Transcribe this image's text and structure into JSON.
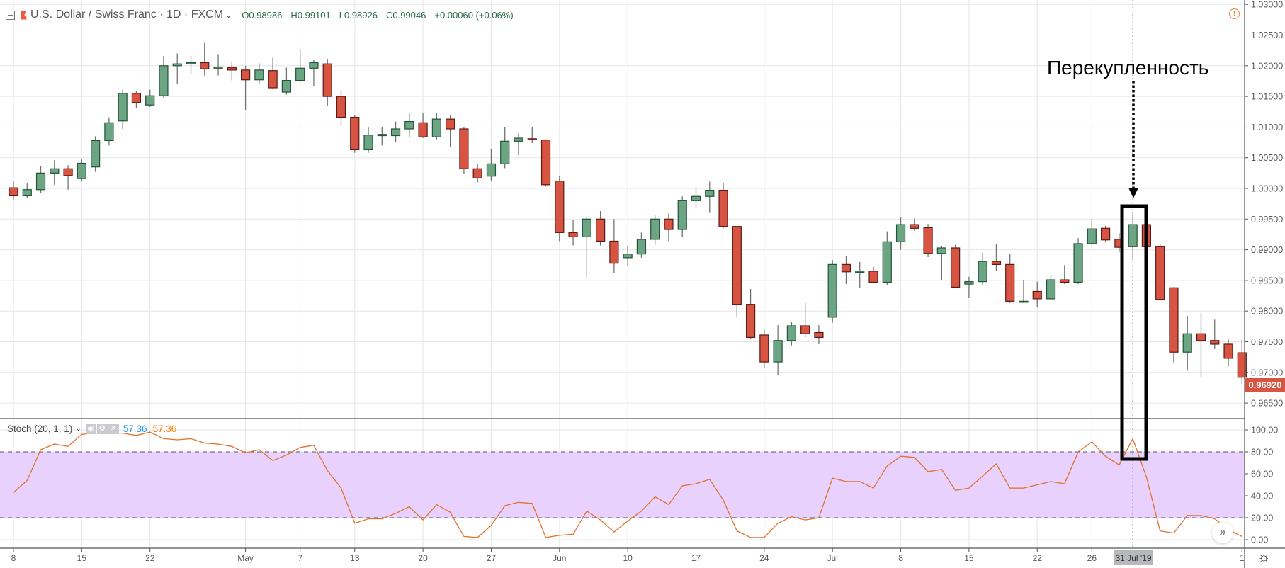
{
  "header": {
    "symbol": "U.S. Dollar / Swiss Franc · 1D · FXCM",
    "open": "O0.98986",
    "high": "H0.99101",
    "low": "L0.98926",
    "close": "C0.99046",
    "change": "+0.00060 (+0.06%)"
  },
  "indicator": {
    "label": "Stoch (20, 1, 1)",
    "k_value": "57.36",
    "d_value": "57.36",
    "k_color": "#2196f3",
    "d_color": "#f57c00"
  },
  "annotation": {
    "text": "Перекупленность"
  },
  "last_price_label": "0.96920",
  "crosshair_date_label": "31 Jul '19",
  "colors": {
    "up": "#6ba583",
    "up_border": "#225437",
    "down": "#d75442",
    "down_border": "#5b1a13",
    "stoch_line": "#e0712c",
    "stoch_band": "#e8d1fd"
  },
  "chart_data": [
    {
      "type": "candlestick",
      "title": "",
      "price_ticks": [
        "1.03000",
        "1.02500",
        "1.02000",
        "1.01500",
        "1.01000",
        "1.00500",
        "1.00000",
        "0.99500",
        "0.99000",
        "0.98500",
        "0.98000",
        "0.97500",
        "0.97000",
        "0.96500"
      ],
      "ylim": [
        0.9635,
        1.0307
      ],
      "candles_ohlc": [
        [
          1.0001,
          1.0012,
          0.9982,
          0.9988
        ],
        [
          0.9988,
          1.0008,
          0.9984,
          0.9998
        ],
        [
          0.9998,
          1.0036,
          0.9993,
          1.0025
        ],
        [
          1.0025,
          1.0046,
          1.0006,
          1.0032
        ],
        [
          1.0032,
          1.0038,
          0.9998,
          1.0021
        ],
        [
          1.0016,
          1.0047,
          1.0011,
          1.0041
        ],
        [
          1.0035,
          1.0085,
          1.0027,
          1.0078
        ],
        [
          1.0078,
          1.0116,
          1.007,
          1.0107
        ],
        [
          1.011,
          1.0161,
          1.0097,
          1.0155
        ],
        [
          1.0155,
          1.0159,
          1.0131,
          1.014
        ],
        [
          1.0136,
          1.0161,
          1.0133,
          1.0151
        ],
        [
          1.0151,
          1.0216,
          1.0147,
          1.02
        ],
        [
          1.02,
          1.022,
          1.017,
          1.0203
        ],
        [
          1.0203,
          1.0216,
          1.0187,
          1.0205
        ],
        [
          1.0205,
          1.0237,
          1.0184,
          1.0195
        ],
        [
          1.0196,
          1.0219,
          1.0184,
          1.0198
        ],
        [
          1.0197,
          1.0207,
          1.0176,
          1.0193
        ],
        [
          1.0193,
          1.02,
          1.0128,
          1.0177
        ],
        [
          1.0177,
          1.0204,
          1.017,
          1.0193
        ],
        [
          1.0192,
          1.0213,
          1.0162,
          1.0164
        ],
        [
          1.0157,
          1.0197,
          1.0153,
          1.0176
        ],
        [
          1.0176,
          1.0227,
          1.0173,
          1.0196
        ],
        [
          1.0196,
          1.0209,
          1.0167,
          1.0205
        ],
        [
          1.0203,
          1.0211,
          1.0134,
          1.015
        ],
        [
          1.015,
          1.016,
          1.0103,
          1.0116
        ],
        [
          1.0116,
          1.012,
          1.0058,
          1.0063
        ],
        [
          1.0063,
          1.01,
          1.0058,
          1.0087
        ],
        [
          1.0086,
          1.01,
          1.007,
          1.0088
        ],
        [
          1.0086,
          1.0109,
          1.0075,
          1.0097
        ],
        [
          1.0097,
          1.0123,
          1.0084,
          1.0109
        ],
        [
          1.0107,
          1.0123,
          1.0082,
          1.0084
        ],
        [
          1.0084,
          1.0123,
          1.008,
          1.0113
        ],
        [
          1.0113,
          1.012,
          1.0067,
          1.0097
        ],
        [
          1.0097,
          1.01,
          1.0024,
          1.0032
        ],
        [
          1.0032,
          1.004,
          1.001,
          1.0017
        ],
        [
          1.002,
          1.0064,
          1.0012,
          1.004
        ],
        [
          1.004,
          1.01,
          1.0033,
          1.0077
        ],
        [
          1.0077,
          1.009,
          1.0054,
          1.0082
        ],
        [
          1.0081,
          1.01,
          1.0074,
          1.008
        ],
        [
          1.0079,
          1.008,
          1.0003,
          1.0006
        ],
        [
          1.0012,
          1.002,
          0.9914,
          0.9928
        ],
        [
          0.9928,
          0.9948,
          0.9907,
          0.9921
        ],
        [
          0.9921,
          0.9954,
          0.9855,
          0.995
        ],
        [
          0.995,
          0.9963,
          0.9907,
          0.9914
        ],
        [
          0.9914,
          0.995,
          0.9862,
          0.9878
        ],
        [
          0.9887,
          0.9907,
          0.9874,
          0.9893
        ],
        [
          0.9893,
          0.9928,
          0.9887,
          0.9917
        ],
        [
          0.9917,
          0.9957,
          0.9908,
          0.995
        ],
        [
          0.995,
          0.9959,
          0.9914,
          0.9933
        ],
        [
          0.9933,
          0.9987,
          0.9921,
          0.998
        ],
        [
          0.998,
          1.0002,
          0.9968,
          0.9987
        ],
        [
          0.9987,
          1.0011,
          0.996,
          0.9997
        ],
        [
          0.9997,
          1.0009,
          0.9935,
          0.9938
        ],
        [
          0.9938,
          0.9938,
          0.979,
          0.9811
        ],
        [
          0.9811,
          0.9836,
          0.9754,
          0.9757
        ],
        [
          0.9761,
          0.977,
          0.9708,
          0.9717
        ],
        [
          0.9717,
          0.9777,
          0.9695,
          0.9752
        ],
        [
          0.9752,
          0.9782,
          0.9744,
          0.9776
        ],
        [
          0.9776,
          0.9813,
          0.9757,
          0.9763
        ],
        [
          0.9765,
          0.9777,
          0.9746,
          0.9757
        ],
        [
          0.979,
          0.9883,
          0.9781,
          0.9876
        ],
        [
          0.9876,
          0.989,
          0.9844,
          0.9864
        ],
        [
          0.9863,
          0.988,
          0.9838,
          0.9865
        ],
        [
          0.9865,
          0.9872,
          0.9847,
          0.9847
        ],
        [
          0.9847,
          0.993,
          0.9843,
          0.9913
        ],
        [
          0.9913,
          0.9953,
          0.99,
          0.9941
        ],
        [
          0.9941,
          0.9951,
          0.9931,
          0.9935
        ],
        [
          0.9936,
          0.9942,
          0.9888,
          0.9894
        ],
        [
          0.9894,
          0.9906,
          0.985,
          0.9903
        ],
        [
          0.9903,
          0.9908,
          0.9838,
          0.9839
        ],
        [
          0.9844,
          0.9856,
          0.9821,
          0.9848
        ],
        [
          0.9848,
          0.9895,
          0.9842,
          0.9881
        ],
        [
          0.9881,
          0.991,
          0.9865,
          0.9876
        ],
        [
          0.9876,
          0.9893,
          0.9813,
          0.9816
        ],
        [
          0.9815,
          0.9851,
          0.9813,
          0.9816
        ],
        [
          0.9832,
          0.9848,
          0.9807,
          0.982
        ],
        [
          0.982,
          0.9859,
          0.9818,
          0.9851
        ],
        [
          0.9851,
          0.9875,
          0.9844,
          0.9847
        ],
        [
          0.9847,
          0.9919,
          0.9844,
          0.991
        ],
        [
          0.991,
          0.995,
          0.9907,
          0.9934
        ],
        [
          0.9935,
          0.9939,
          0.9912,
          0.9916
        ],
        [
          0.9917,
          0.9927,
          0.9896,
          0.9904
        ],
        [
          0.9905,
          0.9958,
          0.9886,
          0.9941
        ],
        [
          0.9941,
          0.9947,
          0.9902,
          0.9905
        ],
        [
          0.9905,
          0.9909,
          0.9817,
          0.9819
        ],
        [
          0.9838,
          0.9839,
          0.9716,
          0.9733
        ],
        [
          0.9733,
          0.9792,
          0.9703,
          0.9763
        ],
        [
          0.9763,
          0.9797,
          0.9692,
          0.9752
        ],
        [
          0.9752,
          0.9786,
          0.9738,
          0.9746
        ],
        [
          0.9746,
          0.9754,
          0.971,
          0.9723
        ],
        [
          0.9732,
          0.9753,
          0.9681,
          0.9692
        ]
      ],
      "time_ticks": [
        {
          "label": "8",
          "index": 0
        },
        {
          "label": "15",
          "index": 5
        },
        {
          "label": "22",
          "index": 10
        },
        {
          "label": "May",
          "index": 17
        },
        {
          "label": "7",
          "index": 21
        },
        {
          "label": "13",
          "index": 25
        },
        {
          "label": "20",
          "index": 30
        },
        {
          "label": "27",
          "index": 35
        },
        {
          "label": "Jun",
          "index": 40
        },
        {
          "label": "10",
          "index": 45
        },
        {
          "label": "17",
          "index": 50
        },
        {
          "label": "24",
          "index": 55
        },
        {
          "label": "Jul",
          "index": 60
        },
        {
          "label": "8",
          "index": 65
        },
        {
          "label": "15",
          "index": 70
        },
        {
          "label": "22",
          "index": 75
        },
        {
          "label": "26",
          "index": 79
        },
        {
          "label": "1",
          "index": 90
        }
      ],
      "highlight_index": 82
    },
    {
      "type": "line",
      "title": "Stoch (20, 1, 1)",
      "ylim": [
        0,
        100
      ],
      "y_ticks": [
        "100.00",
        "80.00",
        "60.00",
        "40.00",
        "20.00",
        "0.00"
      ],
      "band": [
        20,
        80
      ],
      "values": [
        43,
        54,
        82,
        87,
        85,
        96,
        97,
        97,
        97,
        95,
        98,
        92,
        91,
        92,
        88,
        87,
        85,
        79,
        82,
        72,
        77,
        84,
        86,
        63,
        47,
        15,
        19,
        19,
        24,
        30,
        18,
        32,
        25,
        3,
        2,
        13,
        31,
        34,
        33,
        2,
        4,
        5,
        26,
        18,
        7,
        17,
        26,
        39,
        32,
        49,
        51,
        55,
        36,
        8,
        2,
        2,
        15,
        21,
        18,
        20,
        56,
        53,
        53,
        47,
        67,
        76,
        75,
        62,
        64,
        45,
        47,
        58,
        69,
        47,
        47,
        50,
        53,
        51,
        80,
        89,
        76,
        68,
        92,
        57,
        8,
        6,
        22,
        22,
        19,
        9,
        3
      ]
    }
  ]
}
